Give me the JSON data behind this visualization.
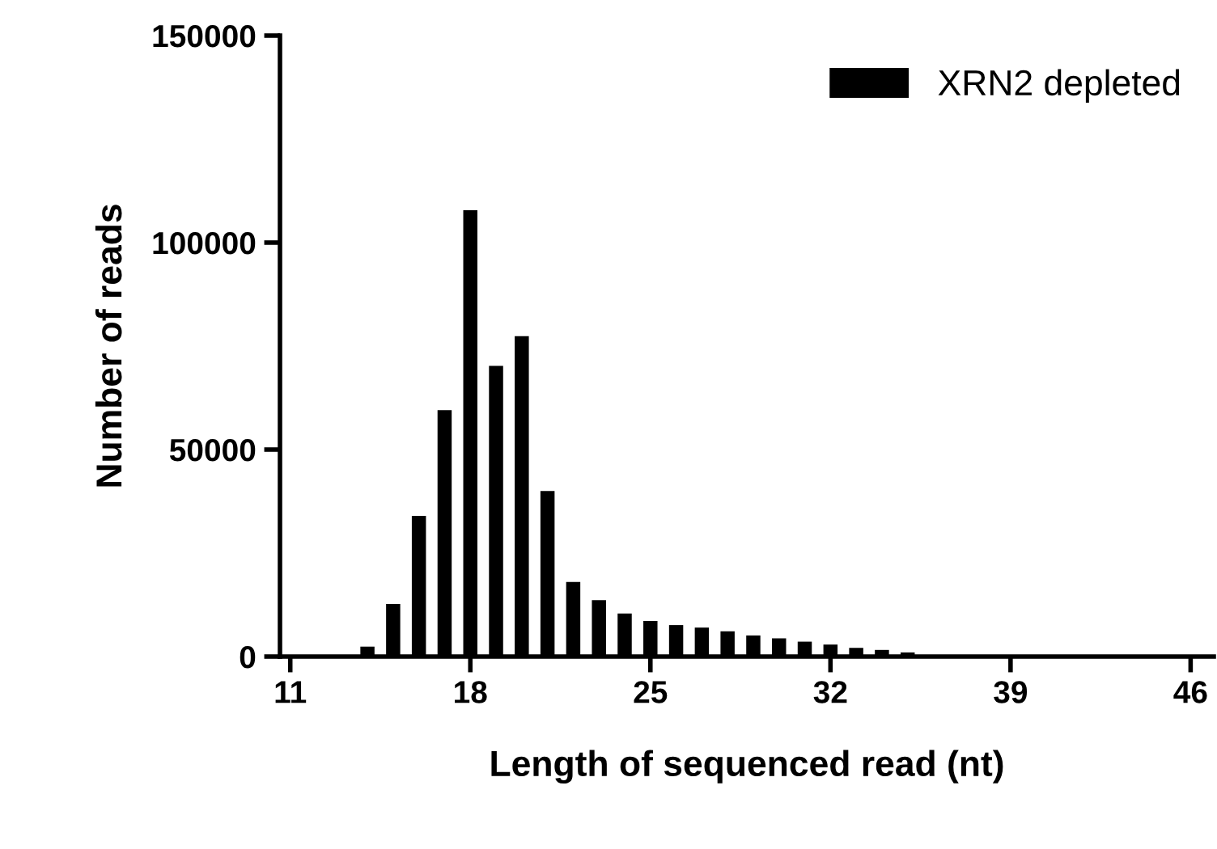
{
  "chart_data": {
    "type": "bar",
    "xlabel": "Length of sequenced read (nt)",
    "ylabel": "Number of reads",
    "x": [
      14,
      15,
      16,
      17,
      18,
      19,
      20,
      21,
      22,
      23,
      24,
      25,
      26,
      27,
      28,
      29,
      30,
      31,
      32,
      33,
      34,
      35
    ],
    "series": [
      {
        "name": "XRN2 depleted",
        "color": "#000000",
        "values": [
          2400,
          12700,
          34000,
          59500,
          107800,
          70200,
          77400,
          40000,
          18000,
          13600,
          10400,
          8600,
          7600,
          7000,
          6100,
          5100,
          4400,
          3600,
          2900,
          2100,
          1600,
          1000
        ]
      }
    ],
    "xlim": [
      10.6,
      46.9
    ],
    "xticks": [
      11,
      18,
      25,
      32,
      39,
      46
    ],
    "ylim": [
      0,
      150000
    ],
    "yticks": [
      0,
      50000,
      100000,
      150000
    ],
    "grid": false,
    "legend": "top right"
  }
}
